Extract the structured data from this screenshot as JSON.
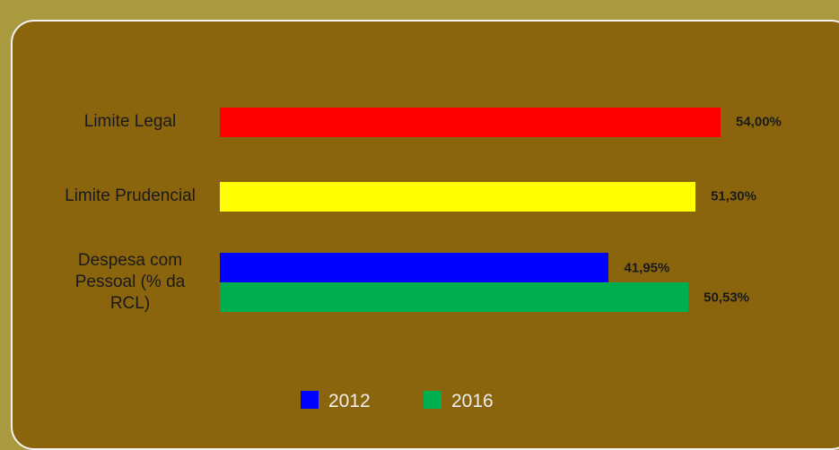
{
  "chart_data": {
    "type": "bar",
    "orientation": "horizontal",
    "groups": [
      {
        "category": "Limite Legal",
        "bars": [
          {
            "value": 54,
            "value_label": "54,00%",
            "color": "#ff0000"
          }
        ]
      },
      {
        "category": "Limite Prudencial",
        "bars": [
          {
            "value": 51.3,
            "value_label": "51,30%",
            "color": "#ffff00"
          }
        ]
      },
      {
        "category": "Despesa com Pessoal (% da RCL)",
        "bars": [
          {
            "value": 41.95,
            "value_label": "41,95%",
            "color": "#0000ff"
          },
          {
            "value": 50.53,
            "value_label": "50,53%",
            "color": "#00b050"
          }
        ]
      }
    ],
    "legend": [
      {
        "name": "2012",
        "color": "#0000ff"
      },
      {
        "name": "2016",
        "color": "#00b050"
      }
    ],
    "xlim": [
      0,
      54
    ],
    "grid": false
  }
}
